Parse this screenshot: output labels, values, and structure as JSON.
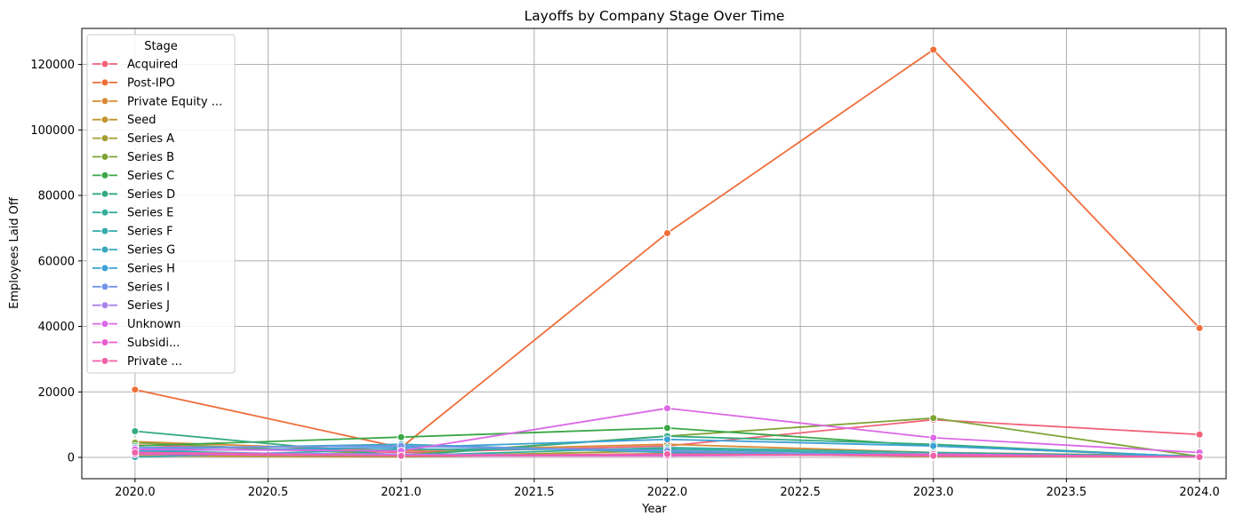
{
  "chart_data": {
    "type": "line",
    "title": "Layoffs by Company Stage Over Time",
    "xlabel": "Year",
    "ylabel": "Employees Laid Off",
    "xlim": [
      1999.0,
      2024.0
    ],
    "ylim": [
      -6500,
      131000
    ],
    "xticks": [
      2020.0,
      2020.5,
      2021.0,
      2021.5,
      2022.0,
      2022.5,
      2023.0,
      2023.5,
      2024.0
    ],
    "xtick_labels": [
      "2020.0",
      "2020.5",
      "2021.0",
      "2021.5",
      "2022.0",
      "2022.5",
      "2023.0",
      "2023.5",
      "2024.0"
    ],
    "yticks": [
      0,
      20000,
      40000,
      60000,
      80000,
      100000,
      120000
    ],
    "ytick_labels": [
      "0",
      "20000",
      "40000",
      "60000",
      "80000",
      "100000",
      "120000"
    ],
    "grid": true,
    "legend_title": "Stage",
    "legend_position": "upper-left",
    "x": [
      2020,
      2021,
      2022,
      2023,
      2024
    ],
    "series": [
      {
        "name": "Acquired",
        "color": "#f0627a",
        "values": [
          3800,
          1500,
          3500,
          11500,
          7000
        ]
      },
      {
        "name": "Post-IPO",
        "color": "#ef6e3a",
        "values": [
          20700,
          3000,
          68500,
          124500,
          39500
        ]
      },
      {
        "name": "Private Equity ...",
        "color": "#d98a37",
        "values": [
          4800,
          2000,
          4000,
          1500,
          500
        ]
      },
      {
        "name": "Seed",
        "color": "#c1952f",
        "values": [
          500,
          200,
          1200,
          300,
          100
        ]
      },
      {
        "name": "Series A",
        "color": "#a39d31",
        "values": [
          1200,
          300,
          2000,
          500,
          100
        ]
      },
      {
        "name": "Series B",
        "color": "#7ea436",
        "values": [
          4500,
          800,
          6500,
          12000,
          300
        ]
      },
      {
        "name": "Series C",
        "color": "#3ba747",
        "values": [
          3500,
          6200,
          9000,
          3500,
          200
        ]
      },
      {
        "name": "Series D",
        "color": "#34ab7f",
        "values": [
          8000,
          500,
          6500,
          4000,
          100
        ]
      },
      {
        "name": "Series E",
        "color": "#33ae9a",
        "values": [
          2000,
          500,
          3000,
          1500,
          300
        ]
      },
      {
        "name": "Series F",
        "color": "#35abab",
        "values": [
          100,
          2500,
          2500,
          1000,
          200
        ]
      },
      {
        "name": "Series G",
        "color": "#38a8bd",
        "values": [
          2500,
          4000,
          1500,
          1000,
          100
        ]
      },
      {
        "name": "Series H",
        "color": "#3ba1d5",
        "values": [
          2000,
          3000,
          5500,
          3500,
          200
        ]
      },
      {
        "name": "Series I",
        "color": "#7394e9",
        "values": [
          3000,
          3500,
          2000,
          500,
          100
        ]
      },
      {
        "name": "Series J",
        "color": "#a883e8",
        "values": [
          1500,
          1000,
          500,
          1000,
          200
        ]
      },
      {
        "name": "Unknown",
        "color": "#db69e5",
        "values": [
          2500,
          2000,
          15000,
          6000,
          1500
        ]
      },
      {
        "name": "Subsidi...",
        "color": "#e85ece",
        "values": [
          1000,
          500,
          500,
          1000,
          100
        ]
      },
      {
        "name": "Private ...",
        "color": "#f061a8",
        "values": [
          1500,
          500,
          1000,
          500,
          100
        ]
      }
    ]
  }
}
